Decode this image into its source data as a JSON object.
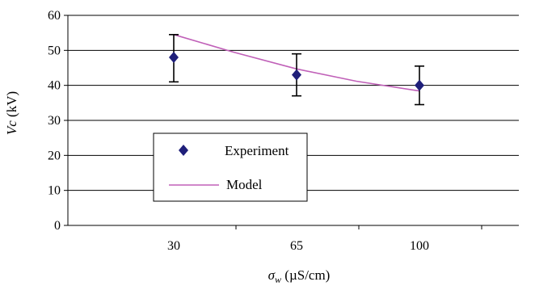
{
  "chart_data": {
    "type": "scatter",
    "title": "",
    "xlabel": {
      "symbol": "σ",
      "subscript": "w",
      "unit": " (µS/cm)"
    },
    "ylabel": {
      "symbol": "Vc",
      "unit": " (kV)"
    },
    "categories": [
      "30",
      "65",
      "100"
    ],
    "ylim": [
      0,
      60
    ],
    "yticks": [
      0,
      10,
      20,
      30,
      40,
      50,
      60
    ],
    "ytick_labels": [
      "0",
      "10",
      "20",
      "30",
      "40",
      "50",
      "60"
    ],
    "grid": "horizontal",
    "legend_placement": "lower-left",
    "series": [
      {
        "name": "Experiment",
        "kind": "points-with-error-bars",
        "marker": "diamond",
        "color": "#1f1f7a",
        "x": [
          30,
          65,
          100
        ],
        "y": [
          48,
          43,
          40
        ],
        "yerr_upper": [
          54.5,
          49,
          45.5
        ],
        "yerr_lower": [
          41,
          37,
          34.5
        ]
      },
      {
        "name": "Model",
        "kind": "line",
        "color": "#c060b8",
        "x": [
          30,
          47,
          65,
          82,
          100
        ],
        "y": [
          54.5,
          49.5,
          44.7,
          41.2,
          38.4
        ]
      }
    ]
  }
}
